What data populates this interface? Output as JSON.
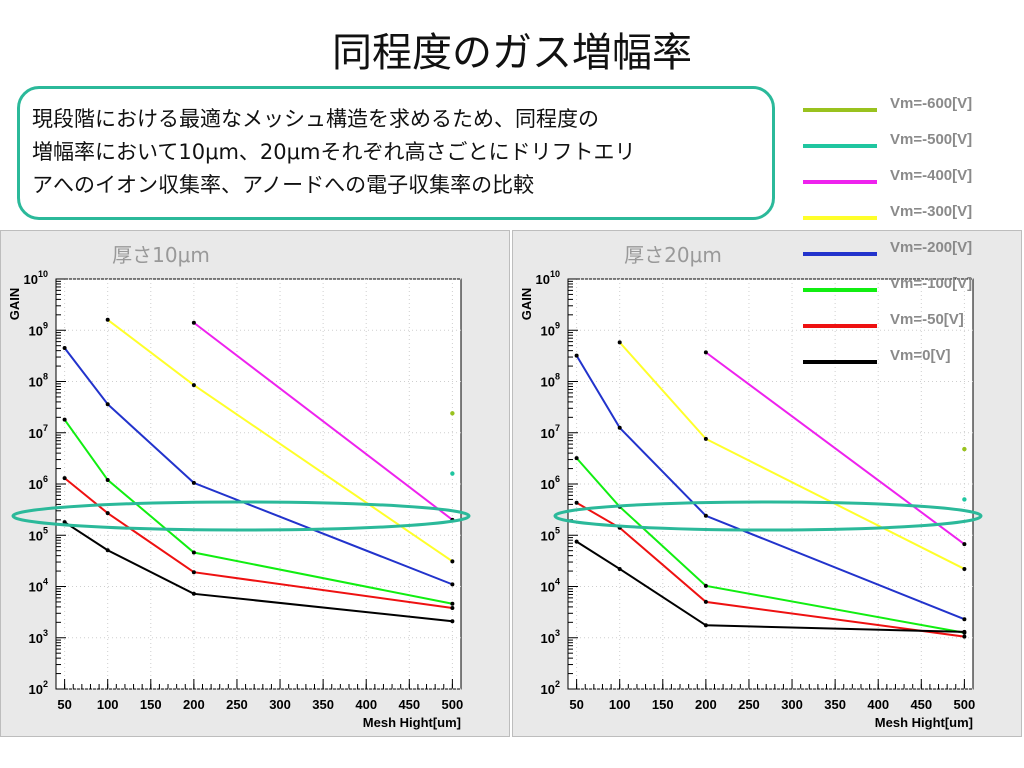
{
  "slide": {
    "title": "同程度のガス増幅率",
    "description": [
      "現段階における最適なメッシュ構造を求めるため、同程度の",
      "増幅率において10μm、20μmそれぞれ高さごとにドリフトエリ",
      "アへのイオン収集率、アノードへの電子収集率の比較"
    ],
    "accent_color": "#2bb99a"
  },
  "legend": [
    {
      "label": "Vm=-600[V]",
      "color": "#99c21e"
    },
    {
      "label": "Vm=-500[V]",
      "color": "#1fc6a0"
    },
    {
      "label": "Vm=-400[V]",
      "color": "#ee22ee"
    },
    {
      "label": "Vm=-300[V]",
      "color": "#ffff2a"
    },
    {
      "label": "Vm=-200[V]",
      "color": "#2233cc"
    },
    {
      "label": "Vm=-100[V]",
      "color": "#11ee11"
    },
    {
      "label": "Vm=-50[V]",
      "color": "#ee1111"
    },
    {
      "label": "Vm=0[V]",
      "color": "#000000"
    }
  ],
  "chart_data": [
    {
      "type": "line",
      "title": "厚さ10μm",
      "xlabel": "Mesh Hight[um]",
      "ylabel": "GAIN",
      "x_ticks": [
        50,
        100,
        150,
        200,
        250,
        300,
        350,
        400,
        450,
        500
      ],
      "xlim": [
        40,
        510
      ],
      "y_scale": "log",
      "ylim": [
        100,
        10000000000
      ],
      "y_exponents": [
        2,
        3,
        4,
        5,
        6,
        7,
        8,
        9,
        10
      ],
      "grid": true,
      "series": [
        {
          "name": "Vm=-600[V]",
          "color": "#99c21e",
          "x": [
            500
          ],
          "y": [
            24000000
          ]
        },
        {
          "name": "Vm=-500[V]",
          "color": "#1fc6a0",
          "x": [
            500
          ],
          "y": [
            1600000
          ]
        },
        {
          "name": "Vm=-400[V]",
          "color": "#ee22ee",
          "x": [
            200,
            500
          ],
          "y": [
            1400000000,
            200000
          ]
        },
        {
          "name": "Vm=-300[V]",
          "color": "#ffff2a",
          "x": [
            100,
            200,
            500
          ],
          "y": [
            1600000000,
            85000000,
            31000
          ]
        },
        {
          "name": "Vm=-200[V]",
          "color": "#2233cc",
          "x": [
            50,
            100,
            200,
            500
          ],
          "y": [
            450000000,
            36000000,
            1050000,
            11000
          ]
        },
        {
          "name": "Vm=-100[V]",
          "color": "#11ee11",
          "x": [
            50,
            100,
            200,
            500
          ],
          "y": [
            18000000,
            1200000,
            46000,
            4600
          ]
        },
        {
          "name": "Vm=-50[V]",
          "color": "#ee1111",
          "x": [
            50,
            100,
            200,
            500
          ],
          "y": [
            1300000,
            270000,
            19000,
            3800
          ]
        },
        {
          "name": "Vm=0[V]",
          "color": "#000000",
          "x": [
            50,
            100,
            200,
            500
          ],
          "y": [
            180000,
            51000,
            7200,
            2100
          ]
        }
      ]
    },
    {
      "type": "line",
      "title": "厚さ20μm",
      "xlabel": "Mesh Hight[um]",
      "ylabel": "GAIN",
      "x_ticks": [
        50,
        100,
        150,
        200,
        250,
        300,
        350,
        400,
        450,
        500
      ],
      "xlim": [
        40,
        510
      ],
      "y_scale": "log",
      "ylim": [
        100,
        10000000000
      ],
      "y_exponents": [
        2,
        3,
        4,
        5,
        6,
        7,
        8,
        9,
        10
      ],
      "grid": true,
      "series": [
        {
          "name": "Vm=-600[V]",
          "color": "#99c21e",
          "x": [
            500
          ],
          "y": [
            4800000
          ]
        },
        {
          "name": "Vm=-500[V]",
          "color": "#1fc6a0",
          "x": [
            500
          ],
          "y": [
            500000
          ]
        },
        {
          "name": "Vm=-400[V]",
          "color": "#ee22ee",
          "x": [
            200,
            500
          ],
          "y": [
            370000000,
            67000
          ]
        },
        {
          "name": "Vm=-300[V]",
          "color": "#ffff2a",
          "x": [
            100,
            200,
            500
          ],
          "y": [
            580000000,
            7600000,
            22000
          ]
        },
        {
          "name": "Vm=-200[V]",
          "color": "#2233cc",
          "x": [
            50,
            100,
            200,
            500
          ],
          "y": [
            320000000,
            12500000,
            240000,
            2300
          ]
        },
        {
          "name": "Vm=-100[V]",
          "color": "#11ee11",
          "x": [
            50,
            100,
            200,
            500
          ],
          "y": [
            3200000,
            360000,
            10300,
            1250
          ]
        },
        {
          "name": "Vm=-50[V]",
          "color": "#ee1111",
          "x": [
            50,
            100,
            200,
            500
          ],
          "y": [
            430000,
            140000,
            5000,
            1050
          ]
        },
        {
          "name": "Vm=0[V]",
          "color": "#000000",
          "x": [
            50,
            100,
            200,
            500
          ],
          "y": [
            75000,
            22000,
            1750,
            1300
          ]
        }
      ]
    }
  ]
}
